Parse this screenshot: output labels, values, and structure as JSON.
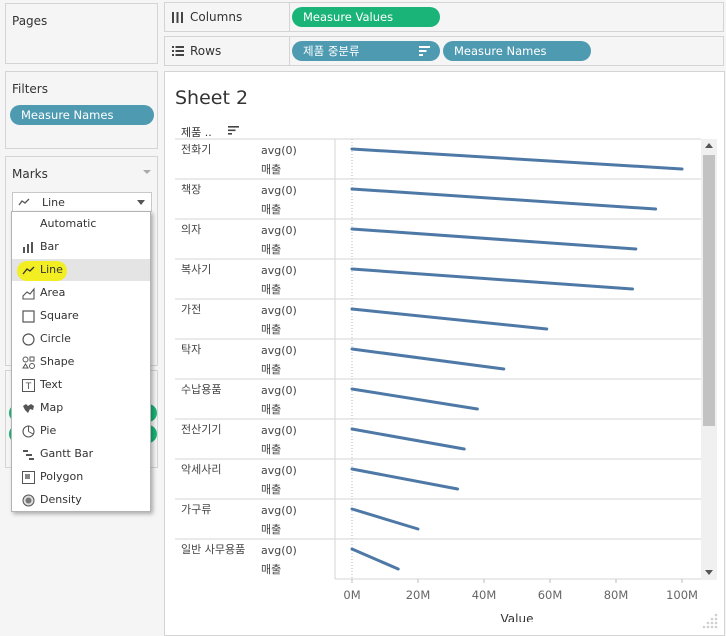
{
  "pages": {
    "title": "Pages"
  },
  "filters": {
    "title": "Filters",
    "pills": [
      "Measure Names"
    ]
  },
  "marks": {
    "title": "Marks",
    "mark_type": "Line",
    "menu": [
      "Automatic",
      "Bar",
      "Line",
      "Area",
      "Square",
      "Circle",
      "Shape",
      "Text",
      "Map",
      "Pie",
      "Gantt Bar",
      "Polygon",
      "Density"
    ],
    "selected": "Line"
  },
  "columns": {
    "label": "Columns",
    "pills": [
      "Measure Values"
    ]
  },
  "rows": {
    "label": "Rows",
    "pills": [
      "제품 중분류",
      "Measure Names"
    ]
  },
  "sheet": {
    "title": "Sheet 2",
    "row_header": "제품 .."
  },
  "chart_data": {
    "type": "line",
    "categories": [
      "전화기",
      "책장",
      "의자",
      "복사기",
      "가전",
      "탁자",
      "수납용품",
      "전산기기",
      "악세사리",
      "가구류",
      "일반 사무용품"
    ],
    "measure_labels": [
      "avg(0)",
      "매출"
    ],
    "series": [
      {
        "start": [
          0,
          0,
          0,
          0,
          0,
          0,
          0,
          0,
          0,
          0,
          0
        ],
        "end": [
          100,
          92,
          86,
          85,
          59,
          46,
          38,
          34,
          32,
          20,
          14
        ]
      }
    ],
    "x_ticks": [
      "0M",
      "20M",
      "40M",
      "60M",
      "80M",
      "100M"
    ],
    "xlabel": "Value",
    "xlim": [
      0,
      100
    ],
    "line_color": "#4e79a7"
  }
}
